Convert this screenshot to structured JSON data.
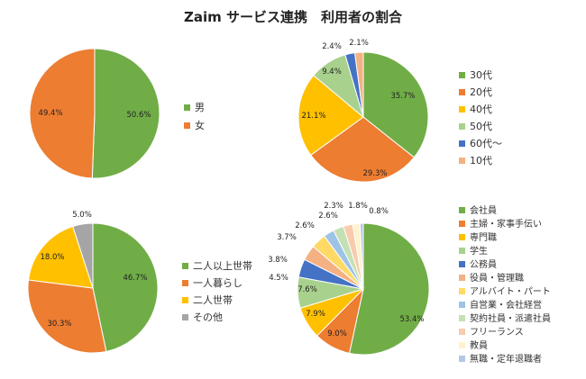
{
  "chart_title": "Zaim サービス連携　利用者の割合",
  "colors": {
    "green": "#70ad47",
    "orange": "#ed7d31",
    "yellow": "#ffc000",
    "lightgreen": "#a9d18e",
    "blue": "#4472c4",
    "salmon": "#f4b183",
    "gray": "#a5a5a5",
    "paleyellow": "#ffd966",
    "paleblue": "#9dc3e6",
    "lightorange": "#f8cbad",
    "palegreen": "#c5e0b4",
    "pale": "#fbe5d6"
  },
  "chart_data": [
    {
      "type": "pie",
      "id": "gender",
      "categories": [
        "男",
        "女"
      ],
      "values": [
        50.6,
        49.4
      ],
      "labels": [
        "50.6%",
        "49.4%"
      ],
      "colors": [
        "#70ad47",
        "#ed7d31"
      ],
      "legend": "right"
    },
    {
      "type": "pie",
      "id": "age",
      "categories": [
        "30代",
        "20代",
        "40代",
        "50代",
        "60代〜",
        "10代"
      ],
      "values": [
        35.7,
        29.3,
        21.1,
        9.4,
        2.4,
        2.1
      ],
      "labels": [
        "35.7%",
        "29.3%",
        "21.1%",
        "9.4%",
        "2.4%",
        "2.1%"
      ],
      "colors": [
        "#70ad47",
        "#ed7d31",
        "#ffc000",
        "#a9d18e",
        "#4472c4",
        "#f4b183"
      ],
      "legend": "right"
    },
    {
      "type": "pie",
      "id": "household",
      "categories": [
        "二人以上世帯",
        "一人暮らし",
        "二人世帯",
        "その他"
      ],
      "values": [
        46.7,
        30.3,
        18.0,
        5.0
      ],
      "labels": [
        "46.7%",
        "30.3%",
        "18.0%",
        "5.0%"
      ],
      "colors": [
        "#70ad47",
        "#ed7d31",
        "#ffc000",
        "#a5a5a5"
      ],
      "legend": "right"
    },
    {
      "type": "pie",
      "id": "occupation",
      "categories": [
        "会社員",
        "主婦・家事手伝い",
        "専門職",
        "学生",
        "公務員",
        "役員・管理職",
        "アルバイト・パート",
        "自営業・会社経営",
        "契約社員・派遣社員",
        "フリーランス",
        "教員",
        "無職・定年退職者"
      ],
      "values": [
        53.4,
        9.0,
        7.9,
        7.6,
        4.5,
        3.8,
        3.7,
        2.6,
        2.6,
        2.3,
        1.8,
        0.8
      ],
      "labels": [
        "53.4%",
        "9.0%",
        "7.9%",
        "7.6%",
        "4.5%",
        "3.8%",
        "3.7%",
        "2.6%",
        "2.6%",
        "2.3%",
        "1.8%",
        "0.8%"
      ],
      "colors": [
        "#70ad47",
        "#ed7d31",
        "#ffc000",
        "#a9d18e",
        "#4472c4",
        "#f4b183",
        "#ffd966",
        "#9dc3e6",
        "#c5e0b4",
        "#f8cbad",
        "#fff2cc",
        "#b4c7e7"
      ],
      "legend": "right"
    }
  ]
}
